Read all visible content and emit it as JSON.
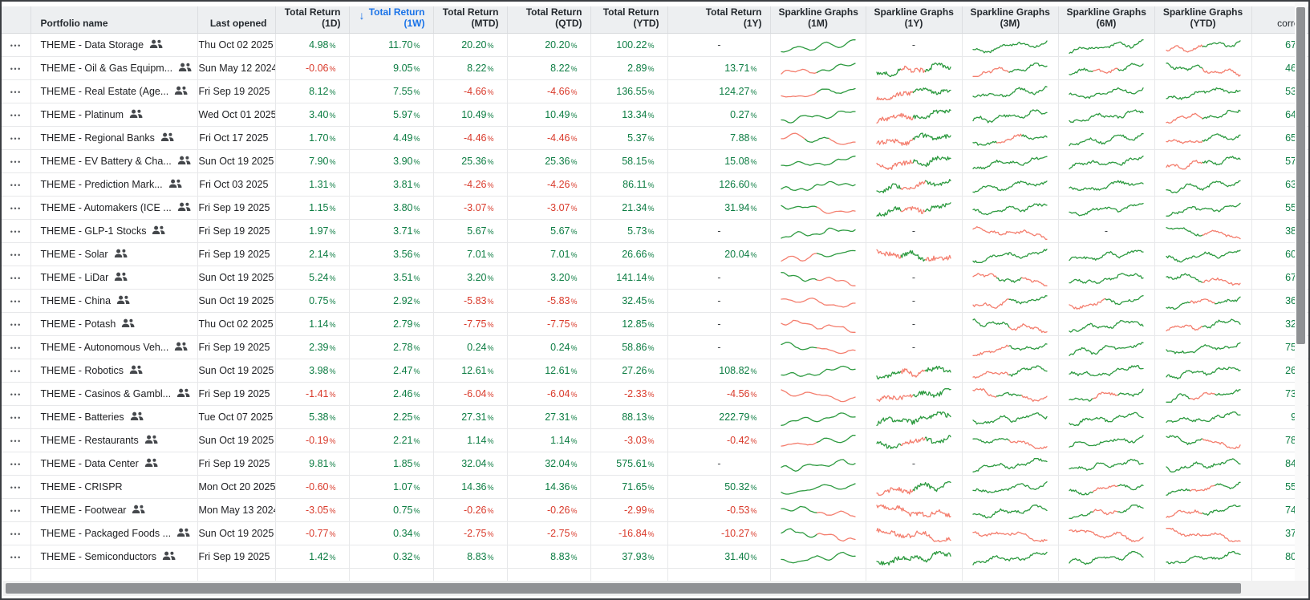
{
  "icons": {
    "row_menu": "•••",
    "sort_desc": "↓",
    "people": "people-group"
  },
  "colors": {
    "positive": "#0d7d43",
    "negative": "#d93a2b",
    "sorted_header_blue": "#1a73e8",
    "spark_green": "#2c9a3f",
    "spark_red": "#f47e6e",
    "header_bg": "#edeff1"
  },
  "header": {
    "portfolio_label": "Portfolio name",
    "last_opened_label": "Last opened",
    "return_cols": [
      {
        "l1": "Total Return",
        "l2": "(1D)"
      },
      {
        "l1": "Total Return",
        "l2": "(1W)"
      },
      {
        "l1": "Total Return",
        "l2": "(MTD)"
      },
      {
        "l1": "Total Return",
        "l2": "(QTD)"
      },
      {
        "l1": "Total Return",
        "l2": "(YTD)"
      },
      {
        "l1": "Total Return",
        "l2": "(1Y)"
      }
    ],
    "spark_cols": [
      {
        "l1": "Sparkline Graphs",
        "l2": "(1M)"
      },
      {
        "l1": "Sparkline Graphs",
        "l2": "(1Y)"
      },
      {
        "l1": "Sparkline Graphs",
        "l2": "(3M)"
      },
      {
        "l1": "Sparkline Graphs",
        "l2": "(6M)"
      },
      {
        "l1": "Sparkline Graphs",
        "l2": "(YTD)"
      }
    ],
    "corre_label": "corre",
    "sort": {
      "column": "Total Return (1W)",
      "direction": "descending"
    }
  },
  "table": {
    "rows": [
      {
        "name": "THEME - Data Storage",
        "people": true,
        "opened": "Thu Oct 02 2025",
        "returns": [
          "4.98",
          "11.70",
          "20.20",
          "20.20",
          "100.22",
          null
        ],
        "sparks": [
          "g",
          null,
          "g",
          "g",
          "rg"
        ],
        "corr": "67."
      },
      {
        "name": "THEME - Oil & Gas Equipm...",
        "people": true,
        "opened": "Sun May 12 2024",
        "returns": [
          "-0.06",
          "9.05",
          "8.22",
          "8.22",
          "2.89",
          "13.71"
        ],
        "sparks": [
          "rg",
          "grg",
          "rg",
          "grg",
          "gr"
        ],
        "corr": "46."
      },
      {
        "name": "THEME - Real Estate (Age...",
        "people": true,
        "opened": "Fri Sep 19 2025",
        "returns": [
          "8.12",
          "7.55",
          "-4.66",
          "-4.66",
          "136.55",
          "124.27"
        ],
        "sparks": [
          "rg",
          "rg",
          "g",
          "g",
          "g"
        ],
        "corr": "53."
      },
      {
        "name": "THEME - Platinum",
        "people": true,
        "opened": "Wed Oct 01 2025",
        "returns": [
          "3.40",
          "5.97",
          "10.49",
          "10.49",
          "13.34",
          "0.27"
        ],
        "sparks": [
          "g",
          "rg",
          "g",
          "g",
          "rg"
        ],
        "corr": "64."
      },
      {
        "name": "THEME - Regional Banks",
        "people": true,
        "opened": "Fri Oct 17 2025",
        "returns": [
          "1.70",
          "4.49",
          "-4.46",
          "-4.46",
          "5.37",
          "7.88"
        ],
        "sparks": [
          "rgr",
          "rg",
          "grg",
          "g",
          "rg"
        ],
        "corr": "65."
      },
      {
        "name": "THEME - EV Battery & Cha...",
        "people": true,
        "opened": "Sun Oct 19 2025",
        "returns": [
          "7.90",
          "3.90",
          "25.36",
          "25.36",
          "58.15",
          "15.08"
        ],
        "sparks": [
          "g",
          "rg",
          "g",
          "g",
          "rg"
        ],
        "corr": "57."
      },
      {
        "name": "THEME - Prediction Mark...",
        "people": true,
        "opened": "Fri Oct 03 2025",
        "returns": [
          "1.31",
          "3.81",
          "-4.26",
          "-4.26",
          "86.11",
          "126.60"
        ],
        "sparks": [
          "g",
          "grg",
          "g",
          "g",
          "g"
        ],
        "corr": "63."
      },
      {
        "name": "THEME - Automakers (ICE ...",
        "people": true,
        "opened": "Fri Sep 19 2025",
        "returns": [
          "1.15",
          "3.80",
          "-3.07",
          "-3.07",
          "21.34",
          "31.94"
        ],
        "sparks": [
          "gr",
          "grg",
          "g",
          "g",
          "g"
        ],
        "corr": "55."
      },
      {
        "name": "THEME - GLP-1 Stocks",
        "people": true,
        "opened": "Fri Sep 19 2025",
        "returns": [
          "1.97",
          "3.71",
          "5.67",
          "5.67",
          "5.73",
          null
        ],
        "sparks": [
          "g",
          null,
          "r",
          null,
          "gr"
        ],
        "corr": "38."
      },
      {
        "name": "THEME - Solar",
        "people": true,
        "opened": "Fri Sep 19 2025",
        "returns": [
          "2.14",
          "3.56",
          "7.01",
          "7.01",
          "26.66",
          "20.04"
        ],
        "sparks": [
          "rg",
          "rgr",
          "g",
          "g",
          "g"
        ],
        "corr": "60."
      },
      {
        "name": "THEME - LiDar",
        "people": true,
        "opened": "Sun Oct 19 2025",
        "returns": [
          "5.24",
          "3.51",
          "3.20",
          "3.20",
          "141.14",
          null
        ],
        "sparks": [
          "gr",
          null,
          "rgr",
          "g",
          "gr"
        ],
        "corr": "67."
      },
      {
        "name": "THEME - China",
        "people": true,
        "opened": "Sun Oct 19 2025",
        "returns": [
          "0.75",
          "2.92",
          "-5.83",
          "-5.83",
          "32.45",
          null
        ],
        "sparks": [
          "r",
          null,
          "rg",
          "rg",
          "grg"
        ],
        "corr": "36."
      },
      {
        "name": "THEME - Potash",
        "people": true,
        "opened": "Thu Oct 02 2025",
        "returns": [
          "1.14",
          "2.79",
          "-7.75",
          "-7.75",
          "12.85",
          null
        ],
        "sparks": [
          "r",
          null,
          "gr",
          "g",
          "rg"
        ],
        "corr": "32."
      },
      {
        "name": "THEME - Autonomous Veh...",
        "people": true,
        "opened": "Fri Sep 19 2025",
        "returns": [
          "2.39",
          "2.78",
          "0.24",
          "0.24",
          "58.86",
          null
        ],
        "sparks": [
          "gr",
          null,
          "rg",
          "g",
          "g"
        ],
        "corr": "75."
      },
      {
        "name": "THEME - Robotics",
        "people": true,
        "opened": "Sun Oct 19 2025",
        "returns": [
          "3.98",
          "2.47",
          "12.61",
          "12.61",
          "27.26",
          "108.82"
        ],
        "sparks": [
          "g",
          "grg",
          "rg",
          "g",
          "g"
        ],
        "corr": "26."
      },
      {
        "name": "THEME - Casinos & Gambl...",
        "people": true,
        "opened": "Fri Sep 19 2025",
        "returns": [
          "-1.41",
          "2.46",
          "-6.04",
          "-6.04",
          "-2.33",
          "-4.56"
        ],
        "sparks": [
          "r",
          "rg",
          "rgr",
          "grg",
          "grg"
        ],
        "corr": "73."
      },
      {
        "name": "THEME - Batteries",
        "people": true,
        "opened": "Tue Oct 07 2025",
        "returns": [
          "5.38",
          "2.25",
          "27.31",
          "27.31",
          "88.13",
          "222.79"
        ],
        "sparks": [
          "g",
          "g",
          "g",
          "g",
          "g"
        ],
        "corr": "9."
      },
      {
        "name": "THEME - Restaurants",
        "people": true,
        "opened": "Sun Oct 19 2025",
        "returns": [
          "-0.19",
          "2.21",
          "1.14",
          "1.14",
          "-3.03",
          "-0.42"
        ],
        "sparks": [
          "rg",
          "grg",
          "gr",
          "g",
          "gr"
        ],
        "corr": "78."
      },
      {
        "name": "THEME - Data Center",
        "people": true,
        "opened": "Fri Sep 19 2025",
        "returns": [
          "9.81",
          "1.85",
          "32.04",
          "32.04",
          "575.61",
          null
        ],
        "sparks": [
          "g",
          null,
          "g",
          "g",
          "g"
        ],
        "corr": "84."
      },
      {
        "name": "THEME - CRISPR",
        "people": false,
        "opened": "Mon Oct 20 2025",
        "returns": [
          "-0.60",
          "1.07",
          "14.36",
          "14.36",
          "71.65",
          "50.32"
        ],
        "sparks": [
          "g",
          "rg",
          "g",
          "grg",
          "grg"
        ],
        "corr": "55."
      },
      {
        "name": "THEME - Footwear",
        "people": true,
        "opened": "Mon May 13 2024",
        "returns": [
          "-3.05",
          "0.75",
          "-0.26",
          "-0.26",
          "-2.99",
          "-0.53"
        ],
        "sparks": [
          "gr",
          "r",
          "g",
          "grg",
          "rg"
        ],
        "corr": "74."
      },
      {
        "name": "THEME - Packaged Foods ...",
        "people": true,
        "opened": "Sun Oct 19 2025",
        "returns": [
          "-0.77",
          "0.34",
          "-2.75",
          "-2.75",
          "-16.84",
          "-10.27"
        ],
        "sparks": [
          "gr",
          "r",
          "r",
          "r",
          "r"
        ],
        "corr": "37."
      },
      {
        "name": "THEME - Semiconductors",
        "people": true,
        "opened": "Fri Sep 19 2025",
        "returns": [
          "1.42",
          "0.32",
          "8.83",
          "8.83",
          "37.93",
          "31.40"
        ],
        "sparks": [
          "g",
          "g",
          "g",
          "g",
          "g"
        ],
        "corr": "80."
      }
    ]
  }
}
